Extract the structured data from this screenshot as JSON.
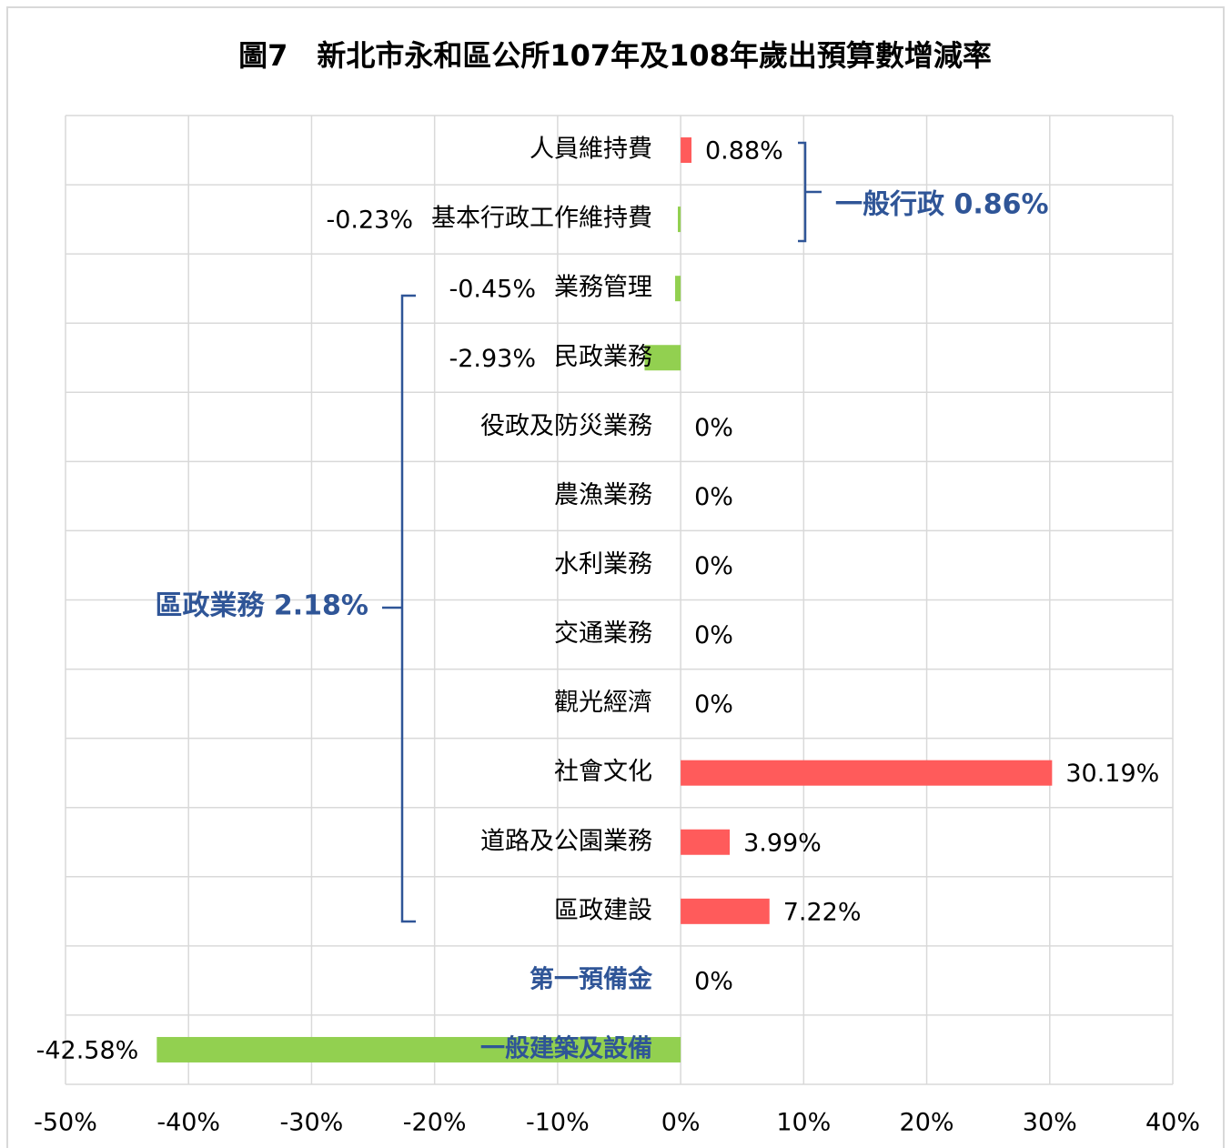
{
  "chart_data": {
    "type": "barh",
    "title": "圖7　新北市永和區公所107年及108年歲出預算數增減率",
    "categories": [
      "人員維持費",
      "基本行政工作維持費",
      "業務管理",
      "民政業務",
      "役政及防災業務",
      "農漁業務",
      "水利業務",
      "交通業務",
      "觀光經濟",
      "社會文化",
      "道路及公園業務",
      "區政建設",
      "第一預備金",
      "一般建築及設備"
    ],
    "values": [
      0.88,
      -0.23,
      -0.45,
      -2.93,
      0,
      0,
      0,
      0,
      0,
      30.19,
      3.99,
      7.22,
      0,
      -42.58
    ],
    "value_labels": [
      "0.88%",
      "-0.23%",
      "-0.45%",
      "-2.93%",
      "0%",
      "0%",
      "0%",
      "0%",
      "0%",
      "30.19%",
      "3.99%",
      "7.22%",
      "0%",
      "-42.58%"
    ],
    "category_colors": [
      "#000000",
      "#000000",
      "#000000",
      "#000000",
      "#000000",
      "#000000",
      "#000000",
      "#000000",
      "#000000",
      "#000000",
      "#000000",
      "#000000",
      "#2f5597",
      "#2f5597"
    ],
    "positive_color": "#ff5b5b",
    "negative_color": "#92d050",
    "xlim": [
      -50,
      40
    ],
    "xticks": [
      {
        "value": -50,
        "label": "-50%"
      },
      {
        "value": -40,
        "label": "-40%"
      },
      {
        "value": -30,
        "label": "-30%"
      },
      {
        "value": -20,
        "label": "-20%"
      },
      {
        "value": -10,
        "label": "-10%"
      },
      {
        "value": 0,
        "label": "0%"
      },
      {
        "value": 10,
        "label": "10%"
      },
      {
        "value": 20,
        "label": "20%"
      },
      {
        "value": 30,
        "label": "30%"
      },
      {
        "value": 40,
        "label": "40%"
      }
    ],
    "grid": true,
    "annotations": [
      "一般行政 0.86%",
      "區政業務 2.18%"
    ]
  }
}
